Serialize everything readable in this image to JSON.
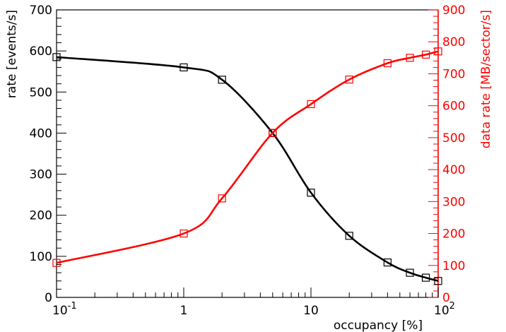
{
  "chart_data": {
    "type": "line",
    "xlabel": "occupancy [%]",
    "ylabel": "rate [events/s]",
    "ylabel_right": "data rate [MB/sector/s]",
    "xscale": "log",
    "xlim": [
      0.1,
      100
    ],
    "ylim": [
      0,
      700
    ],
    "ylim_right": [
      0,
      900
    ],
    "x_tick_labels": [
      {
        "value": 0.1,
        "base": "10",
        "exp": "-1"
      },
      {
        "value": 1,
        "base": "1",
        "exp": ""
      },
      {
        "value": 10,
        "base": "10",
        "exp": ""
      },
      {
        "value": 100,
        "base": "10",
        "exp": "2"
      }
    ],
    "y_tick_labels": [
      "0",
      "100",
      "200",
      "300",
      "400",
      "500",
      "600",
      "700"
    ],
    "y_right_tick_labels": [
      "0",
      "100",
      "200",
      "300",
      "400",
      "500",
      "600",
      "700",
      "800",
      "900"
    ],
    "grid": false,
    "series": [
      {
        "axis": "left",
        "color": "#000000",
        "marker": "open-square",
        "x": [
          0.1,
          1,
          2,
          5,
          10,
          20,
          40,
          60,
          80,
          100
        ],
        "y": [
          585,
          560,
          530,
          400,
          255,
          150,
          85,
          60,
          48,
          40
        ]
      },
      {
        "axis": "right",
        "color": "#ff0000",
        "marker": "open-square",
        "x": [
          0.1,
          1,
          2,
          5,
          10,
          20,
          40,
          60,
          80,
          100
        ],
        "y": [
          108,
          200,
          310,
          515,
          605,
          682,
          733,
          750,
          760,
          770
        ]
      }
    ]
  }
}
